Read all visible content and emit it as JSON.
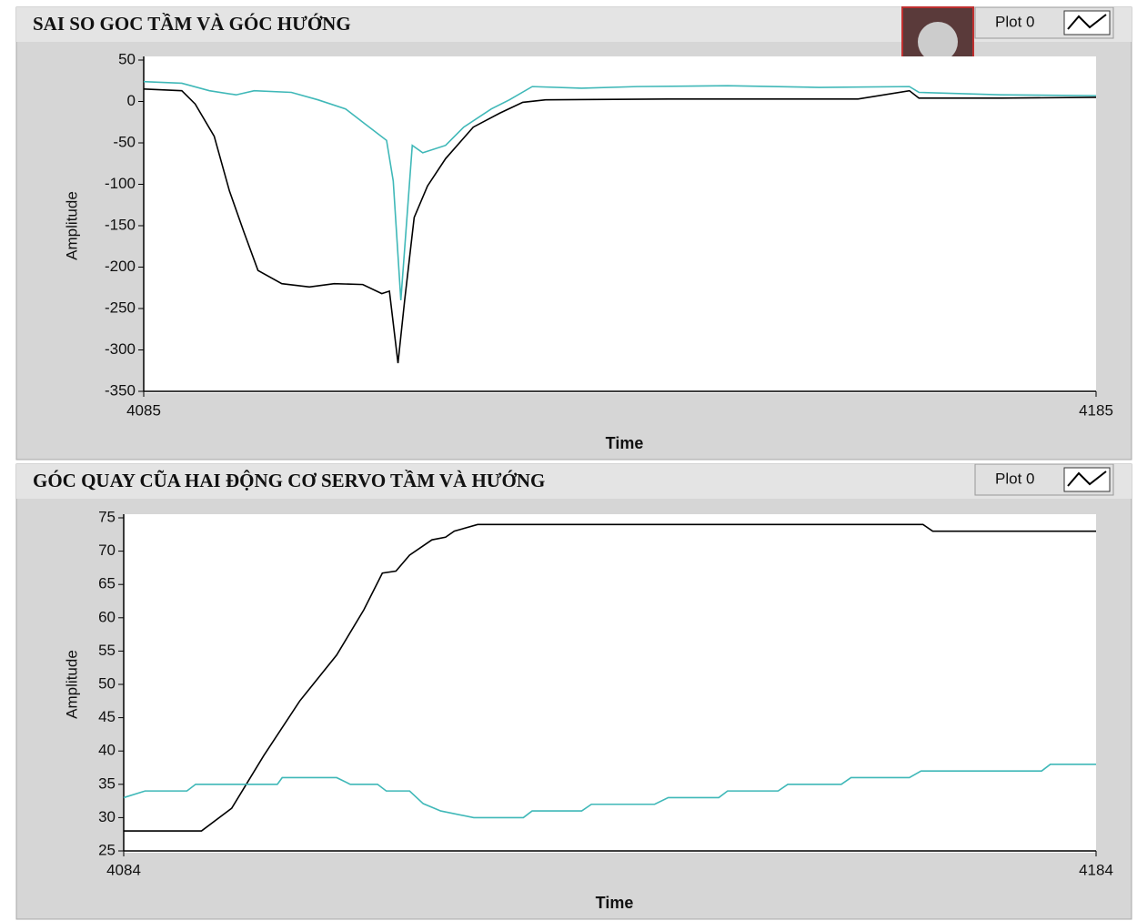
{
  "chart_data": [
    {
      "type": "line",
      "title": "SAI SO GOC TẦM VÀ GÓC HƯỚNG",
      "xlabel": "Time",
      "ylabel": "Amplitude",
      "xlim": [
        4085,
        4185
      ],
      "xticks": [
        4085,
        4185
      ],
      "ylim": [
        -350,
        50
      ],
      "yticks": [
        -350,
        -300,
        -250,
        -200,
        -150,
        -100,
        -50,
        0,
        50
      ],
      "series": [
        {
          "name": "Plot 0",
          "color": "#000000",
          "x": [
            4085,
            4089,
            4090.4,
            4092.4,
            4094,
            4095.5,
            4097,
            4099.5,
            4102.4,
            4105,
            4108,
            4110,
            4110.8,
            4111.7,
            4112.4,
            4113.4,
            4114.8,
            4116.7,
            4119.6,
            4122.4,
            4124.8,
            4127.2,
            4140,
            4150,
            4160,
            4165.4,
            4166.4,
            4175,
            4185
          ],
          "values": [
            15,
            13,
            -3,
            -42,
            -108,
            -157,
            -204,
            -220,
            -224,
            -220,
            -221,
            -232,
            -229,
            -316,
            -240,
            -140,
            -102,
            -69,
            -31,
            -14,
            -1,
            2,
            3,
            3,
            3,
            13,
            4,
            4,
            5
          ]
        },
        {
          "color": "#3fb8b8",
          "x": [
            4085,
            4089,
            4091.9,
            4094.7,
            4096.6,
            4100.5,
            4103.3,
            4106.2,
            4108,
            4110.5,
            4111.2,
            4112,
            4113.2,
            4114.3,
            4116.7,
            4118.6,
            4121.5,
            4123.4,
            4125.8,
            4131,
            4136.8,
            4146.3,
            4155.9,
            4165.4,
            4166.4,
            4175,
            4185
          ],
          "values": [
            24,
            22,
            13,
            8,
            13,
            11,
            2,
            -9,
            -25,
            -47,
            -96,
            -240,
            -53,
            -62,
            -53,
            -31,
            -9,
            2,
            18,
            16,
            18,
            19,
            17,
            18,
            11,
            8,
            7
          ]
        }
      ]
    },
    {
      "type": "line",
      "title": "GÓC QUAY CŨA HAI ĐỘNG CƠ SERVO TẦM VÀ HƯỚNG",
      "xlabel": "Time",
      "ylabel": "Amplitude",
      "xlim": [
        4084,
        4184
      ],
      "xticks": [
        4084,
        4184
      ],
      "ylim": [
        25,
        75
      ],
      "yticks": [
        25,
        30,
        35,
        40,
        45,
        50,
        55,
        60,
        65,
        70,
        75
      ],
      "series": [
        {
          "name": "Plot 0",
          "color": "#000000",
          "x": [
            4084,
            4092,
            4095.1,
            4098.4,
            4102.1,
            4105.9,
            4108.7,
            4110.6,
            4112,
            4113.4,
            4115.7,
            4117.1,
            4118,
            4120.4,
            4166.2,
            4167.2,
            4184
          ],
          "values": [
            28,
            28,
            31.4,
            39.3,
            47.5,
            54.4,
            61.2,
            66.7,
            67,
            69.4,
            71.7,
            72.1,
            73,
            74,
            74,
            73,
            73
          ]
        },
        {
          "color": "#3fb8b8",
          "x": [
            4084,
            4086.2,
            4090.5,
            4091.4,
            4099.8,
            4100.3,
            4105.9,
            4107.3,
            4110.1,
            4111,
            4113.4,
            4114.8,
            4116.6,
            4120,
            4125.1,
            4126,
            4131.1,
            4132.1,
            4138.6,
            4140,
            4145.2,
            4146.1,
            4151.3,
            4152.3,
            4157.8,
            4158.8,
            4164.8,
            4166,
            4178.4,
            4179.3,
            4184
          ],
          "values": [
            33,
            34,
            34,
            35,
            35,
            36,
            36,
            35,
            35,
            34,
            34,
            32.1,
            31,
            30,
            30,
            31,
            31,
            32,
            32,
            33,
            33,
            34,
            34,
            35,
            35,
            36,
            36,
            37,
            37,
            38,
            38
          ]
        }
      ]
    }
  ]
}
